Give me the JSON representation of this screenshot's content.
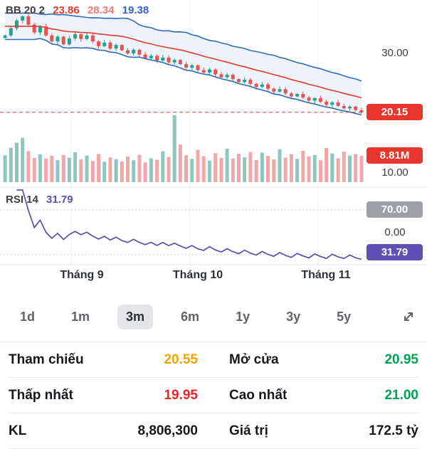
{
  "colors": {
    "up": "#1fa294",
    "down": "#e25550",
    "vol_up": "#8ec7c0",
    "vol_down": "#f2a6a9",
    "band": "#2b6cb8",
    "band_fill": "rgba(43,108,184,0.08)",
    "bb_mid": "#e0392f",
    "bb_upper": "#ef7b76",
    "bb_lower": "#2e62d9",
    "rsi": "#5a4fb0",
    "badge_red": "#e8362d",
    "badge_gray": "#9aa0a6",
    "badge_purple": "#5f50b5",
    "ref": "#f0a400",
    "gain": "#00a153",
    "loss": "#e02a2a",
    "ref_line": "#e0392f"
  },
  "indicators": {
    "bb_label": "BB 20 2",
    "bb_mid_value": "23.86",
    "bb_upper_value": "28.34",
    "bb_lower_value": "19.38",
    "rsi_label": "RSI 14",
    "rsi_value": "31.79"
  },
  "axis": {
    "price_top": "30.00",
    "price_mid": "10.00",
    "price_zero": "0.00",
    "last_price_badge": "20.15",
    "volume_badge": "8.81M",
    "rsi_upper_badge": "70.00",
    "rsi_value_badge": "31.79"
  },
  "ranges": {
    "options": [
      "1d",
      "1m",
      "3m",
      "6m",
      "1y",
      "3y",
      "5y"
    ],
    "selected": "3m"
  },
  "stats": {
    "reference": {
      "label": "Tham chiếu",
      "value": "20.55"
    },
    "open": {
      "label": "Mở cửa",
      "value": "20.95"
    },
    "low": {
      "label": "Thấp nhất",
      "value": "19.95"
    },
    "high": {
      "label": "Cao nhất",
      "value": "21.00"
    },
    "volume": {
      "label": "KL",
      "value": "8,806,300"
    },
    "turnover": {
      "label": "Giá trị",
      "value": "172.5 tỷ"
    }
  },
  "chart_data": {
    "type": "candlestick",
    "x_labels": [
      "Tháng 9",
      "Tháng 10",
      "Tháng 11"
    ],
    "price_ticks": [
      "30.00",
      "10.00",
      "0.00"
    ],
    "last_price": 20.15,
    "last_volume_label": "8.81M",
    "bollinger": {
      "period": 20,
      "stddev": 2,
      "mid": 23.86,
      "upper": 28.34,
      "lower": 19.38
    },
    "rsi": {
      "period": 14,
      "value": 31.79,
      "levels": [
        70,
        30
      ]
    },
    "closes": [
      33.0,
      34.2,
      35.5,
      36.2,
      34.8,
      33.5,
      34.5,
      33.0,
      32.0,
      32.8,
      31.5,
      32.5,
      33.2,
      32.4,
      33.0,
      32.0,
      31.2,
      31.8,
      30.8,
      31.4,
      30.5,
      30.0,
      30.6,
      29.8,
      29.2,
      29.6,
      28.8,
      29.3,
      28.5,
      28.9,
      28.2,
      27.6,
      28.0,
      27.2,
      26.8,
      27.3,
      26.5,
      26.0,
      26.4,
      25.7,
      25.2,
      25.6,
      24.9,
      24.4,
      24.8,
      24.1,
      23.6,
      24.0,
      23.3,
      22.8,
      23.2,
      22.6,
      22.1,
      22.5,
      21.9,
      21.4,
      21.8,
      21.2,
      20.8,
      21.1,
      20.5,
      20.15
    ],
    "volumes": [
      9.0,
      11.5,
      13.2,
      14.8,
      10.4,
      8.1,
      9.3,
      7.9,
      8.8,
      7.4,
      9.1,
      8.2,
      10.0,
      7.6,
      8.9,
      7.1,
      9.4,
      6.8,
      8.3,
      7.7,
      6.9,
      8.6,
      7.3,
      9.2,
      6.6,
      8.0,
      7.5,
      10.3,
      8.4,
      22.4,
      12.6,
      9.0,
      7.8,
      10.8,
      8.7,
      7.2,
      9.7,
      8.1,
      11.2,
      7.9,
      9.5,
      8.3,
      10.1,
      7.4,
      9.9,
      8.8,
      7.6,
      11.0,
      8.2,
      9.3,
      7.8,
      10.5,
      8.6,
      9.1,
      7.3,
      11.4,
      9.6,
      8.0,
      10.2,
      8.9,
      9.4,
      8.81
    ]
  }
}
